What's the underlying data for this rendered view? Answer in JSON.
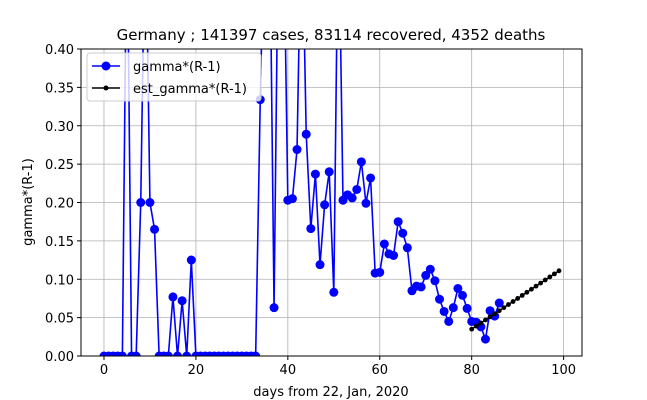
{
  "chart_data": {
    "type": "line",
    "title": "Germany ; 141397 cases, 83114 recovered, 4352 deaths",
    "xlabel": "days from 22, Jan, 2020",
    "ylabel": "gamma*(R-1)",
    "xlim": [
      -5,
      104
    ],
    "ylim": [
      0,
      0.4
    ],
    "x_ticks": [
      0,
      20,
      40,
      60,
      80,
      100
    ],
    "y_ticks": [
      0.0,
      0.05,
      0.1,
      0.15,
      0.2,
      0.25,
      0.3,
      0.35,
      0.4
    ],
    "grid": true,
    "legend_position": "top-left",
    "series": [
      {
        "name": "gamma*(R-1)",
        "color": "#0000ff",
        "marker": "circle",
        "x": [
          0,
          1,
          2,
          3,
          4,
          5,
          6,
          7,
          8,
          9,
          10,
          11,
          12,
          13,
          14,
          15,
          16,
          17,
          18,
          19,
          20,
          21,
          22,
          23,
          24,
          25,
          26,
          27,
          28,
          29,
          30,
          31,
          32,
          33,
          34,
          35,
          36,
          37,
          38,
          39,
          40,
          41,
          42,
          43,
          44,
          45,
          46,
          47,
          48,
          49,
          50,
          51,
          52,
          53,
          54,
          55,
          56,
          57,
          58,
          59,
          60,
          61,
          62,
          63,
          64,
          65,
          66,
          67,
          68,
          69,
          70,
          71,
          72,
          73,
          74,
          75,
          76,
          77,
          78,
          79,
          80,
          81,
          82,
          83,
          84,
          85,
          86
        ],
        "values": [
          0,
          0,
          0,
          0,
          0,
          0.6,
          0,
          0,
          0.2,
          0.6,
          0.2,
          0.165,
          0,
          0,
          0,
          0.077,
          0,
          0.072,
          0,
          0.125,
          0,
          0,
          0,
          0,
          0,
          0,
          0,
          0,
          0,
          0,
          0,
          0,
          0,
          0,
          0.334,
          0.6,
          0.6,
          0.063,
          0.6,
          0.6,
          0.203,
          0.205,
          0.269,
          0.6,
          0.289,
          0.166,
          0.237,
          0.119,
          0.197,
          0.24,
          0.083,
          0.6,
          0.203,
          0.21,
          0.206,
          0.217,
          0.253,
          0.199,
          0.232,
          0.108,
          0.109,
          0.146,
          0.133,
          0.131,
          0.175,
          0.16,
          0.141,
          0.085,
          0.091,
          0.09,
          0.105,
          0.113,
          0.098,
          0.074,
          0.058,
          0.045,
          0.063,
          0.088,
          0.079,
          0.062,
          0.045,
          0.044,
          0.038,
          0.022,
          0.059,
          0.052,
          0.069
        ]
      },
      {
        "name": "est_gamma*(R-1)",
        "color": "#000000",
        "marker": "dot",
        "x": [
          80,
          81,
          82,
          83,
          84,
          85,
          86,
          87,
          88,
          89,
          90,
          91,
          92,
          93,
          94,
          95,
          96,
          97,
          98,
          99
        ],
        "values": [
          0.035,
          0.039,
          0.043,
          0.047,
          0.051,
          0.055,
          0.059,
          0.063,
          0.067,
          0.071,
          0.075,
          0.079,
          0.083,
          0.087,
          0.091,
          0.095,
          0.099,
          0.103,
          0.107,
          0.111
        ]
      }
    ]
  }
}
